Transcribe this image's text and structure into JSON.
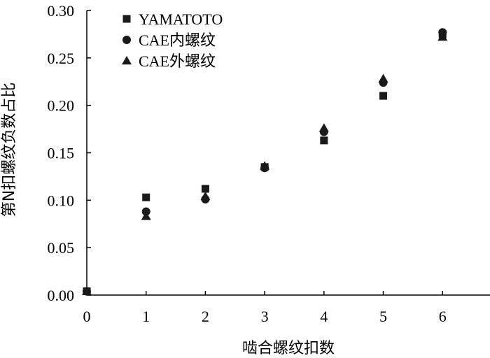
{
  "chart_data": {
    "type": "scatter",
    "xlabel": "啮合螺纹扣数",
    "ylabel": "第N扣螺纹负数占比",
    "xlim": [
      0,
      6.8
    ],
    "ylim": [
      0,
      0.3
    ],
    "x_ticks": [
      0,
      1,
      2,
      3,
      4,
      5,
      6
    ],
    "x_tick_labels": [
      "0",
      "1",
      "2",
      "3",
      "4",
      "5",
      "6"
    ],
    "y_ticks": [
      0,
      0.05,
      0.1,
      0.15,
      0.2,
      0.25,
      0.3
    ],
    "y_tick_labels": [
      "0.00",
      "0.05",
      "0.10",
      "0.15",
      "0.20",
      "0.25",
      "0.30"
    ],
    "legend_position": "top-left",
    "series": [
      {
        "name": "YAMATOTO",
        "marker": "square",
        "x": [
          0,
          1,
          2,
          3,
          4,
          5,
          6
        ],
        "y": [
          0.004,
          0.103,
          0.112,
          0.135,
          0.163,
          0.21,
          0.275
        ]
      },
      {
        "name": "CAE内螺纹",
        "marker": "circle",
        "x": [
          0,
          1,
          2,
          3,
          4,
          5,
          6
        ],
        "y": [
          0.004,
          0.088,
          0.101,
          0.134,
          0.172,
          0.224,
          0.277
        ]
      },
      {
        "name": "CAE外螺纹",
        "marker": "triangle",
        "x": [
          0,
          1,
          2,
          3,
          4,
          5,
          6
        ],
        "y": [
          0.004,
          0.083,
          0.104,
          0.136,
          0.176,
          0.228,
          0.272
        ]
      }
    ]
  }
}
